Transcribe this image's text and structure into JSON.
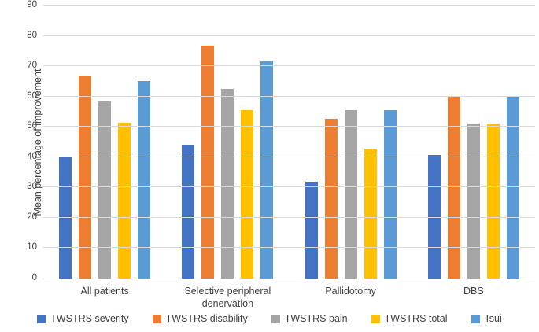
{
  "chart_data": {
    "type": "bar",
    "title": "",
    "xlabel": "",
    "ylabel": "Mean percentage of improvement",
    "ylim": [
      0,
      90
    ],
    "ytick_step": 10,
    "grid": true,
    "legend_position": "bottom",
    "categories": [
      "All patients",
      "Selective peripheral denervation",
      "Pallidotomy",
      "DBS"
    ],
    "series": [
      {
        "name": "TWSTRS severity",
        "color": "#4472C4",
        "values": [
          40.2,
          44.1,
          31.8,
          40.7
        ]
      },
      {
        "name": "TWSTRS disability",
        "color": "#ED7D31",
        "values": [
          67.0,
          76.9,
          52.7,
          60.2
        ]
      },
      {
        "name": "TWSTRS pain",
        "color": "#A5A5A5",
        "values": [
          58.4,
          62.6,
          55.4,
          51.1
        ]
      },
      {
        "name": "TWSTRS total",
        "color": "#FFC000",
        "values": [
          51.3,
          55.4,
          42.9,
          51.1
        ]
      },
      {
        "name": "Tsui",
        "color": "#5B9BD5",
        "values": [
          65.0,
          71.5,
          55.4,
          60.1
        ]
      }
    ]
  },
  "colors": {
    "gridline": "#D9D9D9",
    "axis_line": "#D9D9D9",
    "text": "#404040",
    "background": "#FFFFFF"
  }
}
